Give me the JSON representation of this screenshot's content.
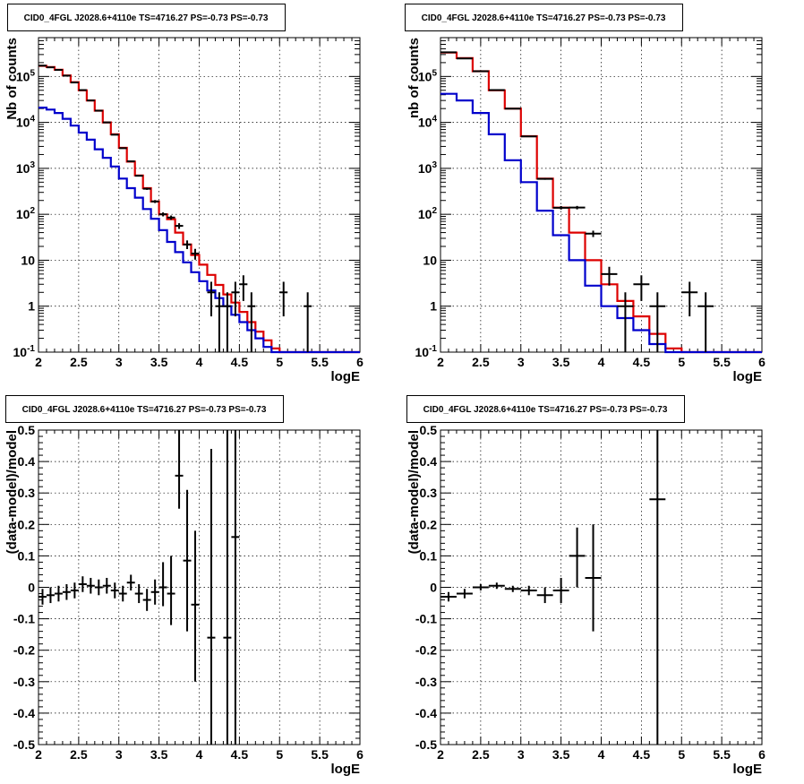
{
  "chart_data": [
    {
      "type": "line",
      "title": "CID0_4FGL J2028.6+4110e TS=4716.27 PS=-0.73 PS=-0.73",
      "xlabel": "logE",
      "ylabel": "Nb of counts",
      "xlim": [
        2,
        6
      ],
      "ylim": [
        0.1,
        700000
      ],
      "yscale": "log",
      "grid": true,
      "x_ticks": [
        "2",
        "2.5",
        "3",
        "3.5",
        "4",
        "4.5",
        "5",
        "5.5",
        "6"
      ],
      "y_ticks": [
        {
          "v": 0.1,
          "base": "10",
          "exp": "-1"
        },
        {
          "v": 1,
          "base": "1",
          "exp": ""
        },
        {
          "v": 10,
          "base": "10",
          "exp": ""
        },
        {
          "v": 100,
          "base": "10",
          "exp": "2"
        },
        {
          "v": 1000,
          "base": "10",
          "exp": "3"
        },
        {
          "v": 10000,
          "base": "10",
          "exp": "4"
        },
        {
          "v": 100000,
          "base": "10",
          "exp": "5"
        }
      ],
      "bin_edges": [
        2.0,
        2.1,
        2.2,
        2.3,
        2.4,
        2.5,
        2.6,
        2.7,
        2.8,
        2.9,
        3.0,
        3.1,
        3.2,
        3.3,
        3.4,
        3.5,
        3.6,
        3.7,
        3.8,
        3.9,
        4.0,
        4.1,
        4.2,
        4.3,
        4.4,
        4.5,
        4.6,
        4.7,
        4.8,
        4.9,
        5.0,
        5.1,
        5.2,
        5.3,
        5.4,
        5.5,
        5.6,
        5.7,
        5.8,
        5.9,
        6.0
      ],
      "series": [
        {
          "color": "#dd0000",
          "values": [
            170000,
            160000,
            140000,
            105000,
            75000,
            50000,
            30000,
            18000,
            10000,
            5500,
            2800,
            1400,
            700,
            370,
            190,
            100,
            78,
            40,
            22,
            13,
            8,
            4.8,
            2.9,
            1.8,
            1.2,
            0.75,
            0.45,
            0.28,
            0.18,
            0.12,
            0.1,
            0.1,
            0.1,
            0.1,
            0.1,
            0.1,
            0.1,
            0.1,
            0.1,
            0.1
          ]
        },
        {
          "color": "#0000cc",
          "values": [
            21000,
            19000,
            16000,
            12000,
            8500,
            6000,
            4200,
            2600,
            1700,
            1100,
            600,
            370,
            230,
            130,
            80,
            45,
            25,
            15,
            9,
            5.5,
            3.5,
            2.2,
            1.5,
            1.0,
            0.65,
            0.45,
            0.3,
            0.2,
            0.13,
            0.1,
            0.1,
            0.1,
            0.1,
            0.1,
            0.1,
            0.1,
            0.1,
            0.1,
            0.1,
            0.1
          ]
        }
      ],
      "points": [
        {
          "x": 2.05,
          "y": 172000,
          "xerr": 0.05,
          "ylo": 171000,
          "yhi": 173000
        },
        {
          "x": 2.15,
          "y": 158000,
          "xerr": 0.05,
          "ylo": 157000,
          "yhi": 159000
        },
        {
          "x": 2.25,
          "y": 139000,
          "xerr": 0.05,
          "ylo": 138000,
          "yhi": 140000
        },
        {
          "x": 2.35,
          "y": 104000,
          "xerr": 0.05,
          "ylo": 103500,
          "yhi": 104500
        },
        {
          "x": 2.45,
          "y": 74000,
          "xerr": 0.05,
          "ylo": 73700,
          "yhi": 74300
        },
        {
          "x": 2.55,
          "y": 50500,
          "xerr": 0.05,
          "ylo": 50300,
          "yhi": 50700
        },
        {
          "x": 2.65,
          "y": 30000,
          "xerr": 0.05,
          "ylo": 29800,
          "yhi": 30200
        },
        {
          "x": 2.75,
          "y": 18000,
          "xerr": 0.05,
          "ylo": 17900,
          "yhi": 18100
        },
        {
          "x": 2.85,
          "y": 10000,
          "xerr": 0.05,
          "ylo": 9900,
          "yhi": 10100
        },
        {
          "x": 2.95,
          "y": 5400,
          "xerr": 0.05,
          "ylo": 5330,
          "yhi": 5470
        },
        {
          "x": 3.05,
          "y": 2750,
          "xerr": 0.05,
          "ylo": 2700,
          "yhi": 2800
        },
        {
          "x": 3.15,
          "y": 1420,
          "xerr": 0.05,
          "ylo": 1380,
          "yhi": 1460
        },
        {
          "x": 3.25,
          "y": 690,
          "xerr": 0.05,
          "ylo": 665,
          "yhi": 715
        },
        {
          "x": 3.35,
          "y": 360,
          "xerr": 0.05,
          "ylo": 340,
          "yhi": 380
        },
        {
          "x": 3.45,
          "y": 190,
          "xerr": 0.05,
          "ylo": 176,
          "yhi": 204
        },
        {
          "x": 3.55,
          "y": 100,
          "xerr": 0.05,
          "ylo": 90,
          "yhi": 110
        },
        {
          "x": 3.65,
          "y": 85,
          "xerr": 0.05,
          "ylo": 76,
          "yhi": 94
        },
        {
          "x": 3.75,
          "y": 56,
          "xerr": 0.05,
          "ylo": 48,
          "yhi": 64
        },
        {
          "x": 3.85,
          "y": 22,
          "xerr": 0.05,
          "ylo": 17.5,
          "yhi": 27
        },
        {
          "x": 3.95,
          "y": 14,
          "xerr": 0.05,
          "ylo": 10.3,
          "yhi": 17.7
        },
        {
          "x": 4.15,
          "y": 2,
          "xerr": 0.05,
          "ylo": 0.6,
          "yhi": 3.4
        },
        {
          "x": 4.25,
          "y": 1,
          "xerr": 0.05,
          "ylo": 0.1,
          "yhi": 2
        },
        {
          "x": 4.35,
          "y": 1,
          "xerr": 0.05,
          "ylo": 0.1,
          "yhi": 2
        },
        {
          "x": 4.45,
          "y": 2,
          "xerr": 0.05,
          "ylo": 0.6,
          "yhi": 3.4
        },
        {
          "x": 4.55,
          "y": 3,
          "xerr": 0.05,
          "ylo": 1.3,
          "yhi": 4.7
        },
        {
          "x": 4.65,
          "y": 1,
          "xerr": 0.05,
          "ylo": 0.1,
          "yhi": 2
        },
        {
          "x": 5.05,
          "y": 2,
          "xerr": 0.05,
          "ylo": 0.6,
          "yhi": 3.4
        },
        {
          "x": 5.35,
          "y": 1,
          "xerr": 0.05,
          "ylo": 0.1,
          "yhi": 2
        }
      ]
    },
    {
      "type": "line",
      "title": "CID0_4FGL J2028.6+4110e TS=4716.27 PS=-0.73 PS=-0.73",
      "xlabel": "logE",
      "ylabel": "nb of counts",
      "xlim": [
        2,
        6
      ],
      "ylim": [
        0.1,
        700000
      ],
      "yscale": "log",
      "grid": true,
      "x_ticks": [
        "2",
        "2.5",
        "3",
        "3.5",
        "4",
        "4.5",
        "5",
        "5.5",
        "6"
      ],
      "y_ticks": [
        {
          "v": 0.1,
          "base": "10",
          "exp": "-1"
        },
        {
          "v": 1,
          "base": "1",
          "exp": ""
        },
        {
          "v": 10,
          "base": "10",
          "exp": ""
        },
        {
          "v": 100,
          "base": "10",
          "exp": "2"
        },
        {
          "v": 1000,
          "base": "10",
          "exp": "3"
        },
        {
          "v": 10000,
          "base": "10",
          "exp": "4"
        },
        {
          "v": 100000,
          "base": "10",
          "exp": "5"
        }
      ],
      "bin_edges": [
        2.0,
        2.2,
        2.4,
        2.6,
        2.8,
        3.0,
        3.2,
        3.4,
        3.6,
        3.8,
        4.0,
        4.2,
        4.4,
        4.6,
        4.8,
        5.0,
        5.2,
        5.4,
        5.6,
        5.8,
        6.0
      ],
      "series": [
        {
          "color": "#dd0000",
          "values": [
            330000,
            250000,
            130000,
            50000,
            20000,
            5000,
            600,
            140,
            40,
            10,
            3.0,
            1.3,
            0.6,
            0.25,
            0.12,
            0.1,
            0.1,
            0.1,
            0.1,
            0.1
          ]
        },
        {
          "color": "#0000cc",
          "values": [
            42000,
            30000,
            16000,
            5500,
            1500,
            500,
            120,
            35,
            10,
            2.8,
            1.0,
            0.55,
            0.3,
            0.15,
            0.1,
            0.1,
            0.1,
            0.1,
            0.1,
            0.1
          ]
        }
      ],
      "points": [
        {
          "x": 2.1,
          "y": 335000,
          "xerr": 0.1,
          "ylo": 333000,
          "yhi": 337000
        },
        {
          "x": 2.3,
          "y": 247000,
          "xerr": 0.1,
          "ylo": 245500,
          "yhi": 248500
        },
        {
          "x": 2.5,
          "y": 130000,
          "xerr": 0.1,
          "ylo": 129200,
          "yhi": 130800
        },
        {
          "x": 2.7,
          "y": 50500,
          "xerr": 0.1,
          "ylo": 50200,
          "yhi": 50800
        },
        {
          "x": 2.9,
          "y": 19900,
          "xerr": 0.1,
          "ylo": 19700,
          "yhi": 20100
        },
        {
          "x": 3.1,
          "y": 4950,
          "xerr": 0.1,
          "ylo": 4880,
          "yhi": 5020
        },
        {
          "x": 3.3,
          "y": 590,
          "xerr": 0.1,
          "ylo": 565,
          "yhi": 615
        },
        {
          "x": 3.5,
          "y": 139,
          "xerr": 0.1,
          "ylo": 127,
          "yhi": 151
        },
        {
          "x": 3.7,
          "y": 140,
          "xerr": 0.1,
          "ylo": 128,
          "yhi": 152
        },
        {
          "x": 3.9,
          "y": 38,
          "xerr": 0.1,
          "ylo": 32,
          "yhi": 44
        },
        {
          "x": 4.1,
          "y": 5,
          "xerr": 0.1,
          "ylo": 2.8,
          "yhi": 7.2
        },
        {
          "x": 4.3,
          "y": 1,
          "xerr": 0.1,
          "ylo": 0.1,
          "yhi": 2
        },
        {
          "x": 4.5,
          "y": 3,
          "xerr": 0.1,
          "ylo": 1.3,
          "yhi": 4.7
        },
        {
          "x": 4.7,
          "y": 1,
          "xerr": 0.1,
          "ylo": 0.1,
          "yhi": 2
        },
        {
          "x": 5.1,
          "y": 2,
          "xerr": 0.1,
          "ylo": 0.6,
          "yhi": 3.4
        },
        {
          "x": 5.3,
          "y": 1,
          "xerr": 0.1,
          "ylo": 0.1,
          "yhi": 2
        }
      ]
    },
    {
      "type": "scatter",
      "title": "CID0_4FGL J2028.6+4110e TS=4716.27 PS=-0.73 PS=-0.73",
      "xlabel": "logE",
      "ylabel": "(data-model)/model",
      "xlim": [
        2,
        6
      ],
      "ylim": [
        -0.5,
        0.5
      ],
      "yscale": "linear",
      "grid": true,
      "x_ticks": [
        "2",
        "2.5",
        "3",
        "3.5",
        "4",
        "4.5",
        "5",
        "5.5",
        "6"
      ],
      "y_ticks": [
        "-0.5",
        "-0.4",
        "-0.3",
        "-0.2",
        "-0.1",
        "0",
        "0.1",
        "0.2",
        "0.3",
        "0.4",
        "0.5"
      ],
      "points": [
        {
          "x": 2.05,
          "y": -0.03,
          "xerr": 0.05,
          "ylo": -0.055,
          "yhi": -0.005
        },
        {
          "x": 2.15,
          "y": -0.025,
          "xerr": 0.05,
          "ylo": -0.05,
          "yhi": 0.0
        },
        {
          "x": 2.25,
          "y": -0.02,
          "xerr": 0.05,
          "ylo": -0.045,
          "yhi": 0.005
        },
        {
          "x": 2.35,
          "y": -0.015,
          "xerr": 0.05,
          "ylo": -0.04,
          "yhi": 0.01
        },
        {
          "x": 2.45,
          "y": -0.01,
          "xerr": 0.05,
          "ylo": -0.035,
          "yhi": 0.015
        },
        {
          "x": 2.55,
          "y": 0.01,
          "xerr": 0.05,
          "ylo": -0.015,
          "yhi": 0.035
        },
        {
          "x": 2.65,
          "y": 0.005,
          "xerr": 0.05,
          "ylo": -0.02,
          "yhi": 0.03
        },
        {
          "x": 2.75,
          "y": 0.0,
          "xerr": 0.05,
          "ylo": -0.025,
          "yhi": 0.025
        },
        {
          "x": 2.85,
          "y": 0.005,
          "xerr": 0.05,
          "ylo": -0.02,
          "yhi": 0.03
        },
        {
          "x": 2.95,
          "y": -0.01,
          "xerr": 0.05,
          "ylo": -0.035,
          "yhi": 0.015
        },
        {
          "x": 3.05,
          "y": -0.02,
          "xerr": 0.05,
          "ylo": -0.045,
          "yhi": 0.005
        },
        {
          "x": 3.15,
          "y": 0.015,
          "xerr": 0.05,
          "ylo": -0.01,
          "yhi": 0.04
        },
        {
          "x": 3.25,
          "y": -0.02,
          "xerr": 0.05,
          "ylo": -0.05,
          "yhi": 0.01
        },
        {
          "x": 3.35,
          "y": -0.04,
          "xerr": 0.05,
          "ylo": -0.075,
          "yhi": -0.005
        },
        {
          "x": 3.45,
          "y": -0.015,
          "xerr": 0.05,
          "ylo": -0.055,
          "yhi": 0.025
        },
        {
          "x": 3.55,
          "y": 0.0,
          "xerr": 0.05,
          "ylo": -0.06,
          "yhi": 0.08
        },
        {
          "x": 3.65,
          "y": -0.02,
          "xerr": 0.05,
          "ylo": -0.12,
          "yhi": 0.1
        },
        {
          "x": 3.75,
          "y": 0.355,
          "xerr": 0.05,
          "ylo": 0.25,
          "yhi": 0.5
        },
        {
          "x": 3.85,
          "y": 0.085,
          "xerr": 0.05,
          "ylo": -0.14,
          "yhi": 0.31
        },
        {
          "x": 3.95,
          "y": -0.055,
          "xerr": 0.05,
          "ylo": -0.3,
          "yhi": 0.18
        },
        {
          "x": 4.15,
          "y": -0.16,
          "xerr": 0.05,
          "ylo": -0.5,
          "yhi": 0.44
        },
        {
          "x": 4.35,
          "y": -0.16,
          "xerr": 0.05,
          "ylo": -0.5,
          "yhi": 0.5
        },
        {
          "x": 4.45,
          "y": 0.16,
          "xerr": 0.05,
          "ylo": -0.5,
          "yhi": 0.5
        }
      ]
    },
    {
      "type": "scatter",
      "title": "CID0_4FGL J2028.6+4110e TS=4716.27 PS=-0.73 PS=-0.73",
      "xlabel": "logE",
      "ylabel": "(data-model)/model",
      "xlim": [
        2,
        6
      ],
      "ylim": [
        -0.5,
        0.5
      ],
      "yscale": "linear",
      "grid": true,
      "x_ticks": [
        "2",
        "2.5",
        "3",
        "3.5",
        "4",
        "4.5",
        "5",
        "5.5",
        "6"
      ],
      "y_ticks": [
        "-0.5",
        "-0.4",
        "-0.3",
        "-0.2",
        "-0.1",
        "0",
        "0.1",
        "0.2",
        "0.3",
        "0.4",
        "0.5"
      ],
      "points": [
        {
          "x": 2.1,
          "y": -0.03,
          "xerr": 0.1,
          "ylo": -0.045,
          "yhi": -0.015
        },
        {
          "x": 2.3,
          "y": -0.02,
          "xerr": 0.1,
          "ylo": -0.035,
          "yhi": -0.005
        },
        {
          "x": 2.5,
          "y": 0.0,
          "xerr": 0.1,
          "ylo": -0.01,
          "yhi": 0.01
        },
        {
          "x": 2.7,
          "y": 0.005,
          "xerr": 0.1,
          "ylo": -0.005,
          "yhi": 0.015
        },
        {
          "x": 2.9,
          "y": -0.005,
          "xerr": 0.1,
          "ylo": -0.015,
          "yhi": 0.005
        },
        {
          "x": 3.1,
          "y": -0.01,
          "xerr": 0.1,
          "ylo": -0.025,
          "yhi": 0.005
        },
        {
          "x": 3.3,
          "y": -0.025,
          "xerr": 0.1,
          "ylo": -0.05,
          "yhi": 0.0
        },
        {
          "x": 3.5,
          "y": -0.01,
          "xerr": 0.1,
          "ylo": -0.05,
          "yhi": 0.03
        },
        {
          "x": 3.7,
          "y": 0.1,
          "xerr": 0.1,
          "ylo": 0.0,
          "yhi": 0.19
        },
        {
          "x": 3.9,
          "y": 0.03,
          "xerr": 0.1,
          "ylo": -0.14,
          "yhi": 0.2
        },
        {
          "x": 4.7,
          "y": 0.28,
          "xerr": 0.1,
          "ylo": -0.5,
          "yhi": 0.5
        }
      ]
    }
  ]
}
